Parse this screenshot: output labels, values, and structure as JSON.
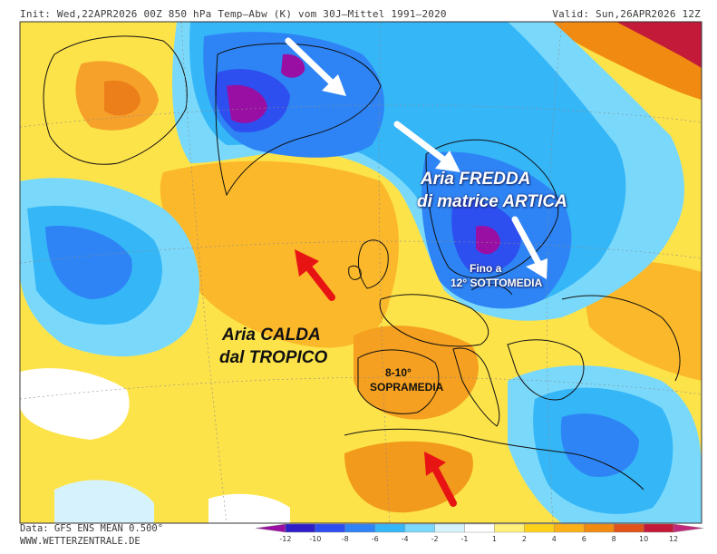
{
  "header": {
    "left": "Init: Wed,22APR2026 00Z  850 hPa Temp–Abw (K) vom 30J–Mittel 1991–2020",
    "right": "Valid: Sun,26APR2026 12Z"
  },
  "footer": {
    "data_source": "Data: GFS ENS MEAN 0.500°",
    "website": "WWW.WETTERZENTRALE.DE"
  },
  "annotations": {
    "cold_line1": "Aria FREDDA",
    "cold_line2": "di matrice ARTICA",
    "cold_detail_line1": "Fino a",
    "cold_detail_line2": "12° SOTTOMEDIA",
    "warm_line1": "Aria CALDA",
    "warm_line2": "dal TROPICO",
    "warm_detail_line1": "8-10°",
    "warm_detail_line2": "SOPRAMEDIA"
  },
  "colorbar": {
    "ticks": [
      "-12",
      "-10",
      "-8",
      "-6",
      "-4",
      "-2",
      "-1",
      "1",
      "2",
      "4",
      "6",
      "8",
      "10",
      "12"
    ],
    "colors": [
      "#9a0fa3",
      "#2e1fc9",
      "#2d4ff0",
      "#2e84f5",
      "#35b6f7",
      "#7ad9fb",
      "#d6f3fd",
      "#ffffff",
      "#fff07a",
      "#ffd21a",
      "#fbb018",
      "#f08a10",
      "#e0541a",
      "#c41a3a",
      "#c2287a"
    ]
  },
  "arrows": {
    "cold_color": "#ffffff",
    "warm_color": "#e81414"
  }
}
